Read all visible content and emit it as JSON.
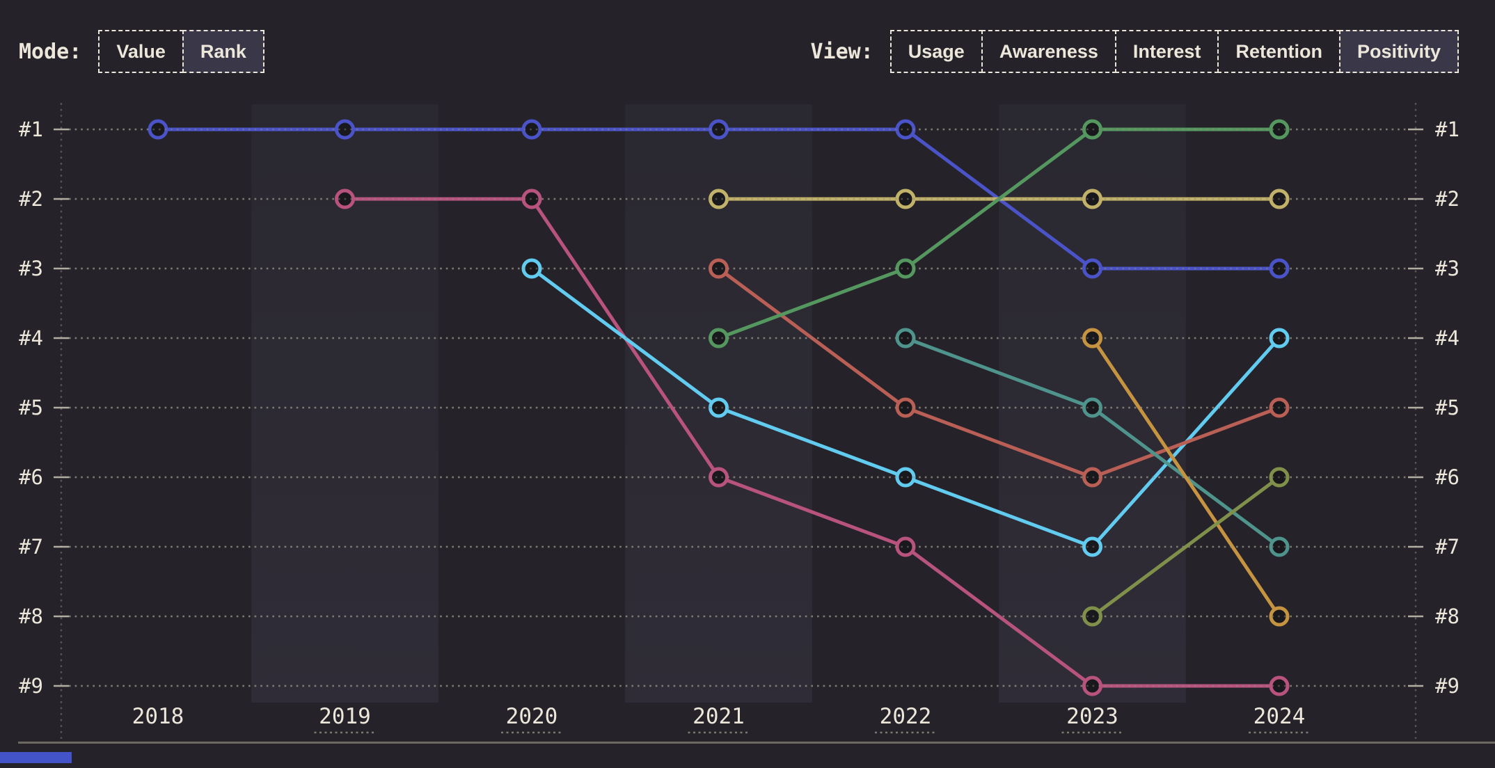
{
  "palette": {
    "background": "#252329",
    "band": "#2f2c37",
    "band_top": "#2a2830",
    "text_cream": "#ece7da",
    "grid": "#8f8a7e",
    "tick": "#c2bdb0",
    "underline": "#7d796e",
    "divider": "#6b6862",
    "selected_button_bg": "#3a3749",
    "dot_fill": "#19181c",
    "accent_bar": "#4353c9"
  },
  "controls": {
    "mode": {
      "label": "Mode:",
      "options": [
        {
          "label": "Value",
          "selected": false
        },
        {
          "label": "Rank",
          "selected": true
        }
      ]
    },
    "view": {
      "label": "View:",
      "options": [
        {
          "label": "Usage",
          "selected": false
        },
        {
          "label": "Awareness",
          "selected": false
        },
        {
          "label": "Interest",
          "selected": false
        },
        {
          "label": "Retention",
          "selected": false
        },
        {
          "label": "Positivity",
          "selected": true
        }
      ]
    }
  },
  "chart_data": {
    "type": "line",
    "subtype": "bump-rank-chart",
    "title": "",
    "x": [
      "2018",
      "2019",
      "2020",
      "2021",
      "2022",
      "2023",
      "2024"
    ],
    "x_label_underlined": [
      false,
      true,
      true,
      true,
      true,
      true,
      true
    ],
    "y_tick_labels": [
      "#1",
      "#2",
      "#3",
      "#4",
      "#5",
      "#6",
      "#7",
      "#8",
      "#9"
    ],
    "y_axis_sides": "both",
    "ylim_ranks": [
      1,
      9
    ],
    "grid": "dotted-horizontal",
    "banded_columns": [
      "2019",
      "2021",
      "2023"
    ],
    "series": [
      {
        "name": "series-indigo",
        "color": "#4a54c8",
        "ranks": [
          1,
          1,
          1,
          1,
          1,
          3,
          3
        ]
      },
      {
        "name": "series-rose",
        "color": "#b8537e",
        "ranks": [
          null,
          2,
          2,
          6,
          7,
          9,
          9
        ]
      },
      {
        "name": "series-cyan",
        "color": "#62cbf0",
        "ranks": [
          null,
          null,
          3,
          5,
          6,
          7,
          4
        ]
      },
      {
        "name": "series-khaki",
        "color": "#c2b168",
        "ranks": [
          null,
          null,
          null,
          2,
          2,
          2,
          2
        ]
      },
      {
        "name": "series-salmon",
        "color": "#b95f55",
        "ranks": [
          null,
          null,
          null,
          3,
          5,
          6,
          5
        ]
      },
      {
        "name": "series-green",
        "color": "#55985f",
        "ranks": [
          null,
          null,
          null,
          4,
          3,
          1,
          1
        ]
      },
      {
        "name": "series-teal",
        "color": "#4f948c",
        "ranks": [
          null,
          null,
          null,
          null,
          4,
          5,
          7
        ]
      },
      {
        "name": "series-orange",
        "color": "#c69440",
        "ranks": [
          null,
          null,
          null,
          null,
          null,
          4,
          8
        ]
      },
      {
        "name": "series-olive",
        "color": "#80904b",
        "ranks": [
          null,
          null,
          null,
          null,
          null,
          8,
          6
        ]
      }
    ]
  }
}
